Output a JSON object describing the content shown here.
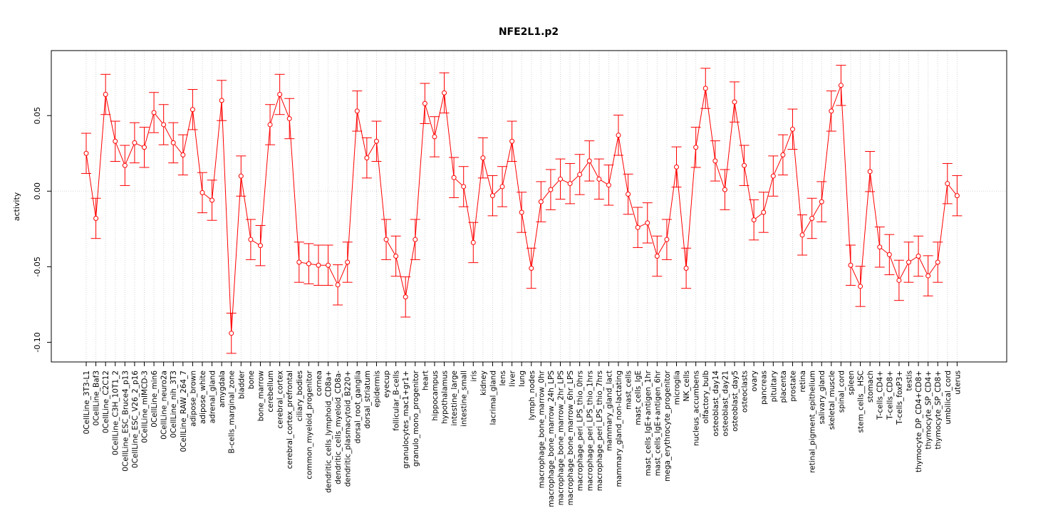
{
  "chart_data": {
    "type": "line",
    "title": "NFE2L1.p2",
    "xlabel": "",
    "ylabel": "activity",
    "ylim": [
      -0.113,
      0.093
    ],
    "yticks": [
      -0.1,
      -0.05,
      0.0,
      0.05
    ],
    "ytick_labels": [
      "-0.10",
      "-0.05",
      "0.00",
      "0.05"
    ],
    "grid": true,
    "colors": {
      "series": "#ff0000",
      "grid": "#d3d3d3",
      "axis": "#000000"
    },
    "categories": [
      "0CellLine_3T3-L1",
      "0CellLine_Baf3",
      "0CellLine_C2C12",
      "0CellLine_C3H_10T1_2",
      "0CellLine_ESC_Bruce4_p13",
      "0CellLine_ESC_V26_2_p16",
      "0CellLine_mIMCD-3",
      "0CellLine_min6",
      "0CellLine_neuro2a",
      "0CellLine_nih_3T3",
      "0CellLine_RAW_264_7",
      "adipose_brown",
      "adipose_white",
      "adrenal_gland",
      "amygdala",
      "B-cells_marginal_zone",
      "bladder",
      "bone",
      "bone_marrow",
      "cerebellum",
      "cerebral_cortex",
      "cerebral_cortex_prefrontal",
      "ciliary_bodies",
      "common_myeloid_progenitor",
      "cornea",
      "dendritic_cells_lymphoid_CD8a+",
      "dendritic_cells_myeloid_CD8a-",
      "dendritic_plasmacytoid_B220+",
      "dorsal_root_ganglia",
      "dorsal_striatum",
      "epidermis",
      "eyecup",
      "follicular_B-cells",
      "granulocytes_mac1+gr1+",
      "granulo_mono_progenitor",
      "heart",
      "hippocampus",
      "hypothalamus",
      "intestine_large",
      "intestine_small",
      "iris",
      "kidney",
      "lacrimal_gland",
      "lens",
      "liver",
      "lung",
      "lymph_nodes",
      "macrophage_bone_marrow_0hr",
      "macrophage_bone_marrow_24h_LPS",
      "macrophage_bone_marrow_2hr_LPS",
      "macrophage_bone_marrow_6hr_LPS",
      "macrophage_peri_LPS_thio_0hrs",
      "macrophage_peri_LPS_thio_1hrs",
      "macrophage_peri_LPS_thio_7hrs",
      "mammary_gland_lact",
      "mammary_gland_non-lactating",
      "mast_cells",
      "mast_cells_IgE",
      "mast_cells_IgE+antigen_1hr",
      "mast_cells_IgE+antigen_6hr",
      "mega_erythrocyte_progenitor",
      "microglia",
      "NK_cells",
      "nucleus_accumbens",
      "olfactory_bulb",
      "osteoblast_day14",
      "osteoblast_day21",
      "osteoblast_day5",
      "osteoclasts",
      "ovary",
      "pancreas",
      "pituitary",
      "placenta",
      "prostate",
      "retina",
      "retinal_pigment_epithelium",
      "salivary_gland",
      "skeletal_muscle",
      "spinal_cord",
      "spleen",
      "stem_cells__HSC",
      "stomach",
      "T-cells_CD4+",
      "T-cells_CD8+",
      "T-cells_foxP3+",
      "testis",
      "thymocyte_DP_CD4+CD8+",
      "thymocyte_SP_CD4+",
      "thymocyte_SP_CD8+",
      "umbilical_cord",
      "uterus"
    ],
    "values": [
      0.025,
      -0.018,
      0.064,
      0.033,
      0.017,
      0.032,
      0.029,
      0.052,
      0.044,
      0.032,
      0.024,
      0.054,
      -0.001,
      -0.006,
      0.06,
      -0.094,
      0.01,
      -0.032,
      -0.036,
      0.044,
      0.064,
      0.048,
      -0.047,
      -0.048,
      -0.049,
      -0.049,
      -0.062,
      -0.047,
      0.053,
      0.022,
      0.033,
      -0.032,
      -0.043,
      -0.07,
      -0.032,
      0.058,
      0.036,
      0.065,
      0.009,
      0.003,
      -0.034,
      0.022,
      -0.003,
      0.003,
      0.033,
      -0.014,
      -0.051,
      -0.007,
      0.001,
      0.008,
      0.005,
      0.011,
      0.02,
      0.008,
      0.004,
      0.037,
      -0.002,
      -0.024,
      -0.021,
      -0.043,
      -0.032,
      0.016,
      -0.051,
      0.029,
      0.068,
      0.02,
      0.001,
      0.059,
      0.017,
      -0.019,
      -0.014,
      0.01,
      0.024,
      0.041,
      -0.029,
      -0.018,
      -0.007,
      0.053,
      0.07,
      -0.049,
      -0.063,
      0.013,
      -0.037,
      -0.042,
      -0.059,
      -0.047,
      -0.043,
      -0.056,
      -0.047,
      0.005,
      -0.003
    ],
    "error": 0.0133
  }
}
